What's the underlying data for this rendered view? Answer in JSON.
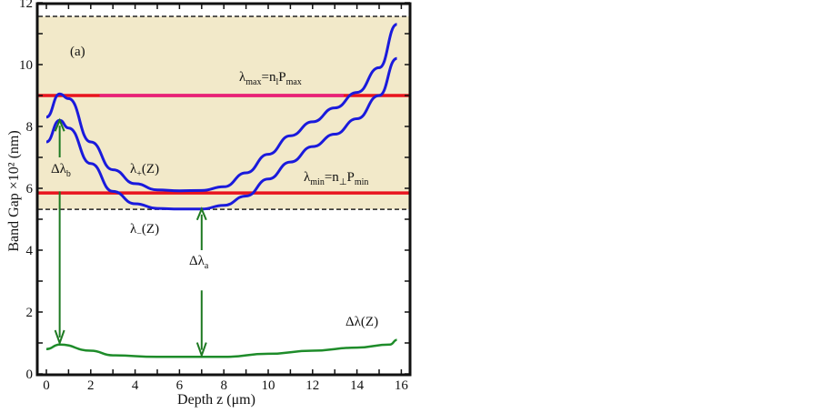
{
  "chart_data": {
    "type": "line",
    "panel_label": "(a)",
    "xlabel": "Depth z (μm)",
    "ylabel": "Band Gap ×10² (nm)",
    "xlim": [
      -0.4,
      16.4
    ],
    "ylim": [
      0,
      12
    ],
    "xticks": [
      0,
      2,
      4,
      6,
      8,
      10,
      12,
      14,
      16
    ],
    "yticks": [
      0,
      2,
      4,
      6,
      8,
      10,
      12
    ],
    "band": {
      "from": 5.32,
      "to": 11.56,
      "color": "#f2e9c9"
    },
    "hlines": [
      {
        "y": 9.0,
        "color": "#e8141e",
        "label_main": "λ",
        "label_sub": "max",
        "label_mid": "=n",
        "label_sub2": "l",
        "label_p": "P",
        "label_sub3": "max"
      },
      {
        "y": 5.85,
        "color": "#e8141e",
        "label_main": "λ",
        "label_sub": "min",
        "label_mid": "=n",
        "label_sub2": "⊥",
        "label_p": "P",
        "label_sub3": "min"
      }
    ],
    "series": [
      {
        "name": "λ+(Z)",
        "label_main": "λ",
        "label_sub": "+",
        "label_tail": "(Z)",
        "color": "#1a1adc",
        "x": [
          0,
          0.6,
          1,
          2,
          3,
          4,
          5,
          6,
          7,
          8,
          9,
          10,
          11,
          12,
          13,
          14,
          15,
          15.8
        ],
        "y": [
          8.3,
          9.05,
          8.9,
          7.5,
          6.6,
          6.15,
          5.95,
          5.92,
          5.93,
          6.05,
          6.5,
          7.1,
          7.7,
          8.15,
          8.6,
          9.1,
          9.9,
          11.3
        ]
      },
      {
        "name": "λ-(Z)",
        "label_main": "λ",
        "label_sub": "−",
        "label_tail": "(Z)",
        "color": "#1a1adc",
        "x": [
          0,
          0.6,
          1,
          2,
          3,
          4,
          5,
          6,
          7,
          8,
          9,
          10,
          11,
          12,
          13,
          14,
          15,
          15.8
        ],
        "y": [
          7.5,
          8.2,
          7.95,
          6.8,
          5.9,
          5.5,
          5.35,
          5.33,
          5.33,
          5.45,
          5.75,
          6.3,
          6.85,
          7.35,
          7.75,
          8.25,
          9.0,
          10.2
        ]
      },
      {
        "name": "Δλ(Z)",
        "label_main": "Δλ(Z)",
        "color": "#1e8c2a",
        "x": [
          0,
          0.6,
          2,
          3,
          5,
          8,
          10,
          12,
          14,
          15.5,
          15.8
        ],
        "y": [
          0.8,
          0.95,
          0.75,
          0.6,
          0.55,
          0.55,
          0.65,
          0.75,
          0.85,
          0.95,
          1.1
        ]
      }
    ],
    "annotations": [
      {
        "label_main": "Δλ",
        "label_sub": "b",
        "x": 0.6,
        "from": 8.2,
        "to": 1.0
      },
      {
        "label_main": "Δλ",
        "label_sub": "a",
        "x": 7.0,
        "from": 5.33,
        "to": 0.6
      }
    ]
  }
}
